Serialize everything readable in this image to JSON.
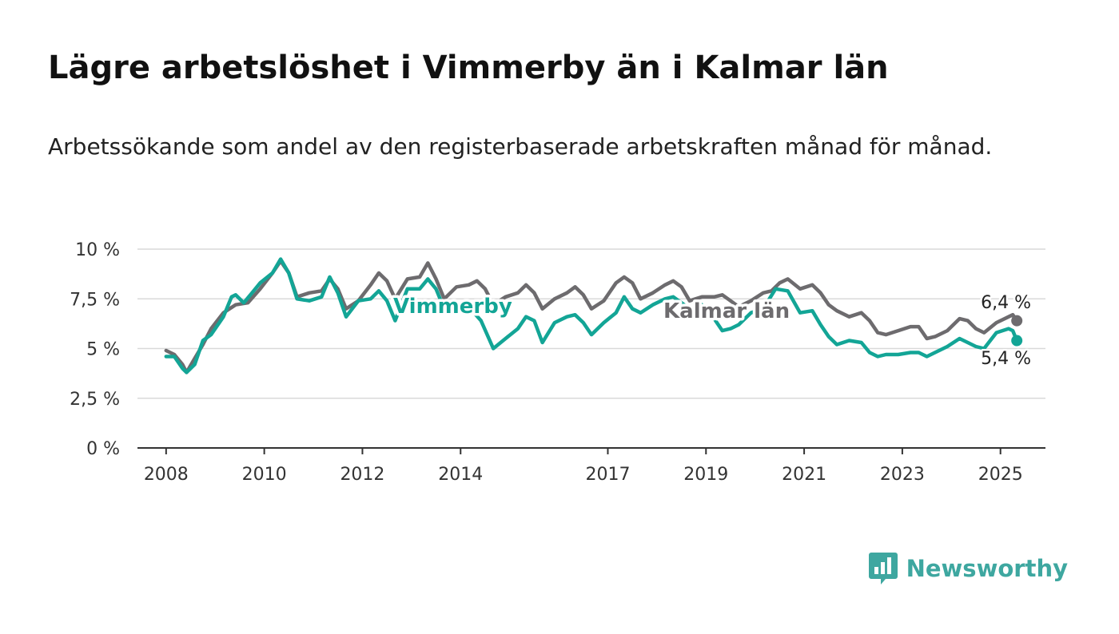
{
  "chart_data": {
    "type": "line",
    "title": "Lägre arbetslöshet i Vimmerby än i Kalmar län",
    "subtitle": "Arbetssökande som andel av den registerbaserade arbetskraften månad för månad.",
    "y_ticks": [
      "10 %",
      "7,5 %",
      "5 %",
      "2,5 %",
      "0 %"
    ],
    "x_ticks": [
      "2008",
      "2010",
      "2012",
      "2014",
      "2017",
      "2019",
      "2021",
      "2023",
      "2025"
    ],
    "ylim": [
      0,
      10
    ],
    "xlim": [
      "2007-06",
      "2025-12"
    ],
    "grid": true,
    "series": [
      {
        "name": "Kalmar län",
        "color": "#6d6b6e",
        "end_label": "6,4 %",
        "points": [
          [
            "2008-01",
            4.9
          ],
          [
            "2008-03",
            4.7
          ],
          [
            "2008-05",
            4.2
          ],
          [
            "2008-06",
            3.8
          ],
          [
            "2008-08",
            4.5
          ],
          [
            "2008-10",
            5.2
          ],
          [
            "2008-12",
            6.0
          ],
          [
            "2009-03",
            6.8
          ],
          [
            "2009-06",
            7.2
          ],
          [
            "2009-09",
            7.3
          ],
          [
            "2009-12",
            8.0
          ],
          [
            "2010-03",
            8.8
          ],
          [
            "2010-05",
            9.4
          ],
          [
            "2010-07",
            8.8
          ],
          [
            "2010-09",
            7.6
          ],
          [
            "2010-12",
            7.8
          ],
          [
            "2011-03",
            7.9
          ],
          [
            "2011-05",
            8.5
          ],
          [
            "2011-07",
            8.0
          ],
          [
            "2011-09",
            7.0
          ],
          [
            "2011-12",
            7.4
          ],
          [
            "2012-03",
            8.2
          ],
          [
            "2012-05",
            8.8
          ],
          [
            "2012-07",
            8.4
          ],
          [
            "2012-09",
            7.5
          ],
          [
            "2012-12",
            8.5
          ],
          [
            "2013-03",
            8.6
          ],
          [
            "2013-05",
            9.3
          ],
          [
            "2013-07",
            8.5
          ],
          [
            "2013-09",
            7.5
          ],
          [
            "2013-12",
            8.1
          ],
          [
            "2014-03",
            8.2
          ],
          [
            "2014-05",
            8.4
          ],
          [
            "2014-07",
            8.0
          ],
          [
            "2014-09",
            7.2
          ],
          [
            "2014-12",
            7.6
          ],
          [
            "2015-03",
            7.8
          ],
          [
            "2015-05",
            8.2
          ],
          [
            "2015-07",
            7.8
          ],
          [
            "2015-09",
            7.0
          ],
          [
            "2015-12",
            7.5
          ],
          [
            "2016-03",
            7.8
          ],
          [
            "2016-05",
            8.1
          ],
          [
            "2016-07",
            7.7
          ],
          [
            "2016-09",
            7.0
          ],
          [
            "2016-12",
            7.4
          ],
          [
            "2017-03",
            8.3
          ],
          [
            "2017-05",
            8.6
          ],
          [
            "2017-07",
            8.3
          ],
          [
            "2017-09",
            7.5
          ],
          [
            "2017-12",
            7.8
          ],
          [
            "2018-03",
            8.2
          ],
          [
            "2018-05",
            8.4
          ],
          [
            "2018-07",
            8.1
          ],
          [
            "2018-09",
            7.4
          ],
          [
            "2018-12",
            7.6
          ],
          [
            "2019-03",
            7.6
          ],
          [
            "2019-05",
            7.7
          ],
          [
            "2019-07",
            7.4
          ],
          [
            "2019-09",
            7.1
          ],
          [
            "2019-12",
            7.4
          ],
          [
            "2020-03",
            7.8
          ],
          [
            "2020-05",
            7.9
          ],
          [
            "2020-07",
            8.3
          ],
          [
            "2020-09",
            8.5
          ],
          [
            "2020-12",
            8.0
          ],
          [
            "2021-03",
            8.2
          ],
          [
            "2021-05",
            7.8
          ],
          [
            "2021-07",
            7.2
          ],
          [
            "2021-09",
            6.9
          ],
          [
            "2021-12",
            6.6
          ],
          [
            "2022-03",
            6.8
          ],
          [
            "2022-05",
            6.4
          ],
          [
            "2022-07",
            5.8
          ],
          [
            "2022-09",
            5.7
          ],
          [
            "2022-12",
            5.9
          ],
          [
            "2023-03",
            6.1
          ],
          [
            "2023-05",
            6.1
          ],
          [
            "2023-07",
            5.5
          ],
          [
            "2023-09",
            5.6
          ],
          [
            "2023-12",
            5.9
          ],
          [
            "2024-03",
            6.5
          ],
          [
            "2024-05",
            6.4
          ],
          [
            "2024-07",
            6.0
          ],
          [
            "2024-09",
            5.8
          ],
          [
            "2024-12",
            6.3
          ],
          [
            "2025-03",
            6.6
          ],
          [
            "2025-04",
            6.7
          ],
          [
            "2025-05",
            6.4
          ]
        ]
      },
      {
        "name": "Vimmerby",
        "color": "#13a596",
        "end_label": "5,4 %",
        "points": [
          [
            "2008-01",
            4.6
          ],
          [
            "2008-03",
            4.6
          ],
          [
            "2008-05",
            4.0
          ],
          [
            "2008-06",
            3.8
          ],
          [
            "2008-08",
            4.2
          ],
          [
            "2008-10",
            5.4
          ],
          [
            "2008-12",
            5.7
          ],
          [
            "2009-03",
            6.6
          ],
          [
            "2009-05",
            7.6
          ],
          [
            "2009-06",
            7.7
          ],
          [
            "2009-08",
            7.3
          ],
          [
            "2009-10",
            7.8
          ],
          [
            "2009-12",
            8.3
          ],
          [
            "2010-03",
            8.8
          ],
          [
            "2010-05",
            9.5
          ],
          [
            "2010-07",
            8.8
          ],
          [
            "2010-09",
            7.5
          ],
          [
            "2010-12",
            7.4
          ],
          [
            "2011-03",
            7.6
          ],
          [
            "2011-05",
            8.6
          ],
          [
            "2011-07",
            7.8
          ],
          [
            "2011-09",
            6.6
          ],
          [
            "2011-12",
            7.4
          ],
          [
            "2012-03",
            7.5
          ],
          [
            "2012-05",
            7.9
          ],
          [
            "2012-07",
            7.4
          ],
          [
            "2012-09",
            6.4
          ],
          [
            "2012-12",
            8.0
          ],
          [
            "2013-03",
            8.0
          ],
          [
            "2013-05",
            8.5
          ],
          [
            "2013-07",
            8.0
          ],
          [
            "2013-09",
            7.0
          ],
          [
            "2013-12",
            7.0
          ],
          [
            "2014-03",
            7.1
          ],
          [
            "2014-06",
            6.4
          ],
          [
            "2014-09",
            5.0
          ],
          [
            "2014-12",
            5.5
          ],
          [
            "2015-03",
            6.0
          ],
          [
            "2015-05",
            6.6
          ],
          [
            "2015-07",
            6.4
          ],
          [
            "2015-09",
            5.3
          ],
          [
            "2015-12",
            6.3
          ],
          [
            "2016-03",
            6.6
          ],
          [
            "2016-05",
            6.7
          ],
          [
            "2016-07",
            6.3
          ],
          [
            "2016-09",
            5.7
          ],
          [
            "2016-12",
            6.3
          ],
          [
            "2017-03",
            6.8
          ],
          [
            "2017-05",
            7.6
          ],
          [
            "2017-07",
            7.0
          ],
          [
            "2017-09",
            6.8
          ],
          [
            "2017-12",
            7.2
          ],
          [
            "2018-03",
            7.5
          ],
          [
            "2018-05",
            7.6
          ],
          [
            "2018-07",
            7.3
          ],
          [
            "2018-09",
            7.0
          ],
          [
            "2018-12",
            7.2
          ],
          [
            "2019-03",
            6.5
          ],
          [
            "2019-05",
            5.9
          ],
          [
            "2019-07",
            6.0
          ],
          [
            "2019-09",
            6.2
          ],
          [
            "2019-12",
            6.8
          ],
          [
            "2020-03",
            7.0
          ],
          [
            "2020-06",
            8.0
          ],
          [
            "2020-09",
            7.9
          ],
          [
            "2020-12",
            6.8
          ],
          [
            "2021-03",
            6.9
          ],
          [
            "2021-05",
            6.2
          ],
          [
            "2021-07",
            5.6
          ],
          [
            "2021-09",
            5.2
          ],
          [
            "2021-12",
            5.4
          ],
          [
            "2022-03",
            5.3
          ],
          [
            "2022-05",
            4.8
          ],
          [
            "2022-07",
            4.6
          ],
          [
            "2022-09",
            4.7
          ],
          [
            "2022-12",
            4.7
          ],
          [
            "2023-03",
            4.8
          ],
          [
            "2023-05",
            4.8
          ],
          [
            "2023-07",
            4.6
          ],
          [
            "2023-09",
            4.8
          ],
          [
            "2023-12",
            5.1
          ],
          [
            "2024-03",
            5.5
          ],
          [
            "2024-05",
            5.3
          ],
          [
            "2024-07",
            5.1
          ],
          [
            "2024-09",
            5.0
          ],
          [
            "2024-12",
            5.8
          ],
          [
            "2025-03",
            6.0
          ],
          [
            "2025-04",
            5.9
          ],
          [
            "2025-05",
            5.4
          ]
        ]
      }
    ]
  },
  "brand": {
    "name": "Newsworthy",
    "color": "#3ea7a0"
  }
}
